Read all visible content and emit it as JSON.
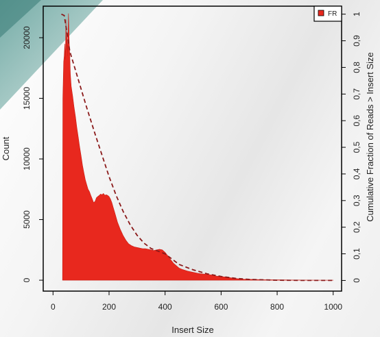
{
  "chart_data": {
    "type": "area",
    "xlabel": "Insert Size",
    "ylabel": "Count",
    "y2label": "Cumulative Fraction of Reads > Insert Size",
    "xlim": [
      -35,
      1030
    ],
    "ylim": [
      -900,
      22600
    ],
    "y2lim": [
      -0.04,
      1.03
    ],
    "xticks": [
      0,
      200,
      400,
      600,
      800,
      1000
    ],
    "yticks": [
      0,
      5000,
      10000,
      15000,
      20000
    ],
    "y2ticks": [
      0,
      0.1,
      0.2,
      0.3,
      0.4,
      0.5,
      0.6,
      0.7,
      0.8,
      0.9,
      1
    ],
    "y2ticklabels": [
      "0",
      "0,1",
      "0,2",
      "0,3",
      "0,4",
      "0,5",
      "0,6",
      "0,7",
      "0,8",
      "0,9",
      "1"
    ],
    "legend": {
      "position": "top-right",
      "entries": [
        {
          "label": "FR",
          "color": "#e8281e"
        }
      ]
    },
    "series": [
      {
        "name": "FR",
        "kind": "histogram",
        "color": "#e8281e",
        "x": [
          34,
          35,
          38,
          40,
          42,
          44,
          46,
          48,
          50,
          52,
          55,
          58,
          60,
          62,
          65,
          70,
          75,
          80,
          85,
          90,
          95,
          100,
          105,
          110,
          115,
          120,
          125,
          130,
          135,
          140,
          145,
          150,
          155,
          160,
          165,
          170,
          175,
          180,
          185,
          190,
          195,
          200,
          205,
          210,
          215,
          220,
          225,
          230,
          240,
          250,
          260,
          270,
          280,
          290,
          300,
          310,
          320,
          330,
          340,
          350,
          360,
          370,
          380,
          390,
          400,
          410,
          420,
          430,
          440,
          450,
          460,
          480,
          500,
          520,
          540,
          560,
          580,
          600,
          620,
          640,
          660,
          680,
          700,
          750,
          800,
          850,
          900,
          950,
          1000
        ],
        "y": [
          0,
          15000,
          18000,
          18500,
          19500,
          18200,
          21500,
          19000,
          20500,
          18500,
          22000,
          19500,
          18500,
          17000,
          16000,
          15200,
          14300,
          13500,
          12600,
          11800,
          11000,
          10300,
          9500,
          8900,
          8300,
          7900,
          7500,
          7300,
          7000,
          6700,
          6400,
          6500,
          6800,
          6900,
          7000,
          7100,
          7050,
          7150,
          7000,
          7050,
          7000,
          6900,
          6700,
          6400,
          6000,
          5600,
          5200,
          4800,
          4200,
          3700,
          3300,
          3000,
          2850,
          2750,
          2700,
          2650,
          2600,
          2600,
          2550,
          2500,
          2450,
          2500,
          2550,
          2500,
          2300,
          2000,
          1700,
          1400,
          1200,
          1000,
          900,
          750,
          650,
          550,
          500,
          450,
          350,
          300,
          250,
          180,
          120,
          90,
          70,
          40,
          25,
          15,
          10,
          5,
          3
        ]
      },
      {
        "name": "Cumulative",
        "kind": "cumulative",
        "axis": "right",
        "color": "#8b1a1a",
        "x": [
          30,
          40,
          50,
          60,
          80,
          100,
          120,
          150,
          175,
          200,
          225,
          250,
          275,
          300,
          325,
          350,
          375,
          400,
          425,
          450,
          500,
          550,
          600,
          650,
          700,
          800,
          900,
          1000
        ],
        "y": [
          1.0,
          0.995,
          0.93,
          0.86,
          0.79,
          0.72,
          0.65,
          0.55,
          0.47,
          0.39,
          0.32,
          0.26,
          0.21,
          0.17,
          0.14,
          0.12,
          0.11,
          0.1,
          0.08,
          0.06,
          0.04,
          0.025,
          0.015,
          0.008,
          0.004,
          0.001,
          0.0,
          0.0
        ]
      }
    ],
    "grid": false
  }
}
